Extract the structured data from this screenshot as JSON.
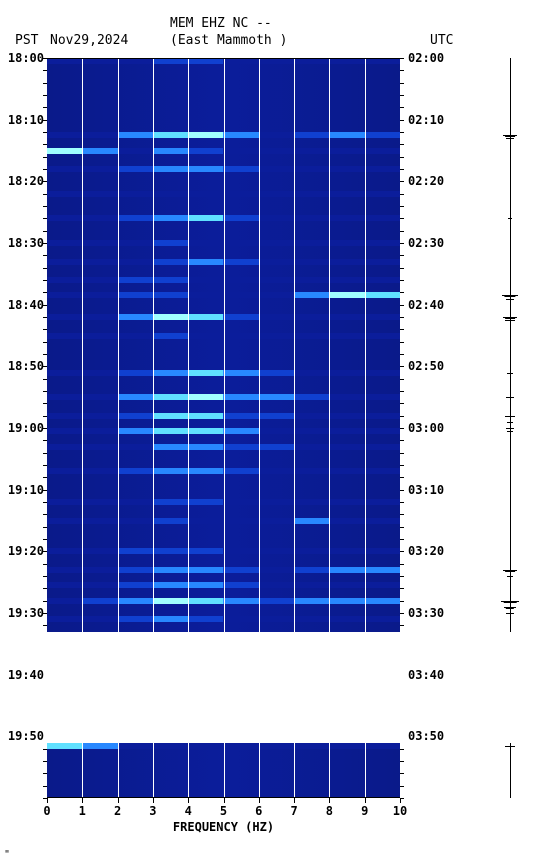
{
  "header": {
    "station": "MEM EHZ NC --",
    "location": "(East Mammoth )",
    "tz_left": "PST",
    "date": "Nov29,2024",
    "tz_right": "UTC"
  },
  "plot": {
    "x_label": "FREQUENCY (HZ)",
    "x_ticks": [
      0,
      1,
      2,
      3,
      4,
      5,
      6,
      7,
      8,
      9,
      10
    ],
    "y_ticks_left": [
      "18:00",
      "18:10",
      "18:20",
      "18:30",
      "18:40",
      "18:50",
      "19:00",
      "19:10",
      "19:20",
      "19:30",
      "19:40",
      "19:50"
    ],
    "y_ticks_right": [
      "02:00",
      "02:10",
      "02:20",
      "02:30",
      "02:40",
      "02:50",
      "03:00",
      "03:10",
      "03:20",
      "03:30",
      "03:40",
      "03:50"
    ],
    "y_range_minutes": [
      0,
      120
    ],
    "colors": {
      "bg": "#0b1d9b",
      "low": "#0a1a8a",
      "mid": "#1040d0",
      "high": "#2888ff",
      "peak": "#60e0ff",
      "bright": "#a0ffff"
    },
    "data_segments": [
      {
        "start": 0,
        "end": 93
      },
      {
        "start": 111,
        "end": 120
      }
    ],
    "events": [
      {
        "t": 0.5,
        "intensities": [
          0.2,
          0.2,
          0.3,
          0.4,
          0.4,
          0.3,
          0.3,
          0.3,
          0.3,
          0.3
        ]
      },
      {
        "t": 12.5,
        "intensities": [
          0.3,
          0.3,
          0.5,
          0.7,
          0.9,
          0.5,
          0.3,
          0.4,
          0.6,
          0.4
        ]
      },
      {
        "t": 15.0,
        "intensities": [
          0.9,
          0.5,
          0.3,
          0.5,
          0.4,
          0.3,
          0.3,
          0.3,
          0.3,
          0.3
        ]
      },
      {
        "t": 18,
        "intensities": [
          0.3,
          0.3,
          0.4,
          0.5,
          0.5,
          0.4,
          0.3,
          0.3,
          0.3,
          0.3
        ]
      },
      {
        "t": 22,
        "intensities": [
          0.2,
          0.2,
          0.3,
          0.3,
          0.3,
          0.3,
          0.2,
          0.2,
          0.2,
          0.2
        ]
      },
      {
        "t": 26,
        "intensities": [
          0.3,
          0.3,
          0.4,
          0.6,
          0.7,
          0.4,
          0.3,
          0.3,
          0.3,
          0.3
        ]
      },
      {
        "t": 30,
        "intensities": [
          0.2,
          0.2,
          0.3,
          0.4,
          0.3,
          0.3,
          0.3,
          0.3,
          0.3,
          0.3
        ]
      },
      {
        "t": 33,
        "intensities": [
          0.2,
          0.3,
          0.3,
          0.4,
          0.5,
          0.4,
          0.3,
          0.3,
          0.3,
          0.3
        ]
      },
      {
        "t": 36,
        "intensities": [
          0.3,
          0.3,
          0.4,
          0.4,
          0.3,
          0.3,
          0.3,
          0.3,
          0.3,
          0.3
        ]
      },
      {
        "t": 38.5,
        "intensities": [
          0.3,
          0.3,
          0.4,
          0.4,
          0.3,
          0.3,
          0.3,
          0.5,
          0.9,
          0.7
        ]
      },
      {
        "t": 42,
        "intensities": [
          0.3,
          0.3,
          0.6,
          0.9,
          0.7,
          0.4,
          0.3,
          0.3,
          0.3,
          0.3
        ]
      },
      {
        "t": 45,
        "intensities": [
          0.2,
          0.2,
          0.3,
          0.4,
          0.3,
          0.3,
          0.3,
          0.3,
          0.3,
          0.3
        ]
      },
      {
        "t": 51,
        "intensities": [
          0.3,
          0.3,
          0.4,
          0.6,
          0.8,
          0.5,
          0.4,
          0.3,
          0.3,
          0.3
        ]
      },
      {
        "t": 55,
        "intensities": [
          0.3,
          0.3,
          0.5,
          0.8,
          0.9,
          0.5,
          0.5,
          0.4,
          0.3,
          0.3
        ]
      },
      {
        "t": 58,
        "intensities": [
          0.3,
          0.3,
          0.4,
          0.7,
          0.7,
          0.4,
          0.4,
          0.3,
          0.3,
          0.3
        ]
      },
      {
        "t": 60.5,
        "intensities": [
          0.3,
          0.3,
          0.5,
          0.8,
          0.8,
          0.5,
          0.3,
          0.3,
          0.3,
          0.3
        ]
      },
      {
        "t": 63,
        "intensities": [
          0.2,
          0.2,
          0.3,
          0.5,
          0.5,
          0.4,
          0.4,
          0.3,
          0.3,
          0.3
        ]
      },
      {
        "t": 67,
        "intensities": [
          0.3,
          0.3,
          0.4,
          0.5,
          0.6,
          0.4,
          0.3,
          0.3,
          0.3,
          0.3
        ]
      },
      {
        "t": 72,
        "intensities": [
          0.2,
          0.2,
          0.3,
          0.4,
          0.4,
          0.3,
          0.3,
          0.3,
          0.3,
          0.3
        ]
      },
      {
        "t": 75,
        "intensities": [
          0.2,
          0.2,
          0.3,
          0.4,
          0.3,
          0.3,
          0.3,
          0.5,
          0.3,
          0.3
        ]
      },
      {
        "t": 80,
        "intensities": [
          0.3,
          0.3,
          0.4,
          0.4,
          0.4,
          0.3,
          0.3,
          0.3,
          0.3,
          0.3
        ]
      },
      {
        "t": 83,
        "intensities": [
          0.3,
          0.3,
          0.4,
          0.6,
          0.5,
          0.4,
          0.3,
          0.4,
          0.6,
          0.5
        ]
      },
      {
        "t": 85.5,
        "intensities": [
          0.3,
          0.3,
          0.4,
          0.5,
          0.5,
          0.4,
          0.3,
          0.3,
          0.3,
          0.3
        ]
      },
      {
        "t": 88,
        "intensities": [
          0.3,
          0.4,
          0.6,
          0.9,
          0.7,
          0.5,
          0.4,
          0.5,
          0.5,
          0.5
        ]
      },
      {
        "t": 91,
        "intensities": [
          0.3,
          0.3,
          0.4,
          0.5,
          0.4,
          0.3,
          0.3,
          0.3,
          0.3,
          0.3
        ]
      },
      {
        "t": 111.5,
        "intensities": [
          0.8,
          0.5,
          0.3,
          0.3,
          0.3,
          0.3,
          0.3,
          0.3,
          0.3,
          0.3
        ]
      }
    ]
  },
  "seismogram": {
    "line_segments": [
      {
        "start": 0,
        "end": 93
      },
      {
        "start": 111,
        "end": 120
      }
    ],
    "spikes": [
      {
        "t": 12.5,
        "amp": 14
      },
      {
        "t": 13.0,
        "amp": 8
      },
      {
        "t": 26,
        "amp": 4
      },
      {
        "t": 38.5,
        "amp": 16
      },
      {
        "t": 39,
        "amp": 8
      },
      {
        "t": 42,
        "amp": 14
      },
      {
        "t": 42.5,
        "amp": 10
      },
      {
        "t": 51,
        "amp": 6
      },
      {
        "t": 55,
        "amp": 8
      },
      {
        "t": 58,
        "amp": 10
      },
      {
        "t": 59,
        "amp": 6
      },
      {
        "t": 60,
        "amp": 8
      },
      {
        "t": 60.5,
        "amp": 6
      },
      {
        "t": 83,
        "amp": 14
      },
      {
        "t": 84,
        "amp": 6
      },
      {
        "t": 88,
        "amp": 18
      },
      {
        "t": 89,
        "amp": 12
      },
      {
        "t": 90,
        "amp": 8
      },
      {
        "t": 111.5,
        "amp": 10
      }
    ]
  }
}
